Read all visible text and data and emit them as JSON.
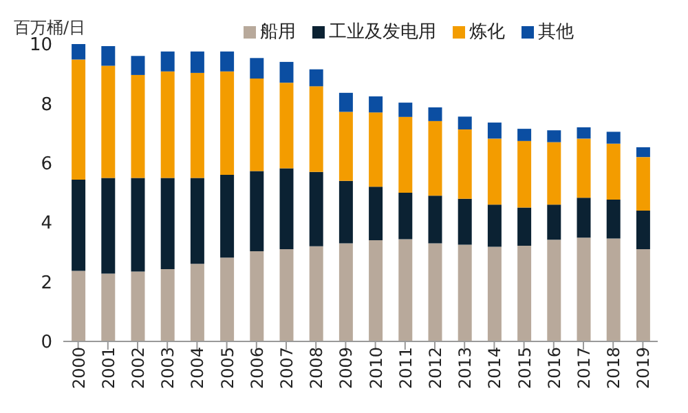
{
  "chart_data": {
    "type": "bar",
    "stacked": true,
    "ylabel": "百万桶/日",
    "categories": [
      "2000",
      "2001",
      "2002",
      "2003",
      "2004",
      "2005",
      "2006",
      "2007",
      "2008",
      "2009",
      "2010",
      "2011",
      "2012",
      "2013",
      "2014",
      "2015",
      "2016",
      "2017",
      "2018",
      "2019"
    ],
    "series": [
      {
        "name": "船用",
        "color": "#b8a99b",
        "values": [
          2.37,
          2.28,
          2.35,
          2.43,
          2.61,
          2.82,
          3.03,
          3.1,
          3.2,
          3.3,
          3.4,
          3.44,
          3.3,
          3.25,
          3.18,
          3.22,
          3.42,
          3.49,
          3.46,
          3.1
        ]
      },
      {
        "name": "工业及发电用",
        "color": "#0b2233",
        "values": [
          3.07,
          3.22,
          3.15,
          3.07,
          2.89,
          2.78,
          2.7,
          2.72,
          2.5,
          2.1,
          1.8,
          1.56,
          1.6,
          1.55,
          1.42,
          1.28,
          1.18,
          1.34,
          1.31,
          1.3
        ]
      },
      {
        "name": "炼化",
        "color": "#f39c00",
        "values": [
          4.04,
          3.77,
          3.46,
          3.58,
          3.53,
          3.48,
          3.11,
          2.88,
          2.88,
          2.32,
          2.5,
          2.55,
          2.51,
          2.33,
          2.22,
          2.24,
          2.1,
          1.99,
          1.88,
          1.8
        ]
      },
      {
        "name": "其他",
        "color": "#0b4ea2",
        "values": [
          0.52,
          0.66,
          0.64,
          0.67,
          0.72,
          0.67,
          0.69,
          0.7,
          0.57,
          0.64,
          0.54,
          0.48,
          0.46,
          0.43,
          0.54,
          0.41,
          0.4,
          0.38,
          0.4,
          0.33
        ]
      }
    ],
    "ylim": [
      0,
      10
    ],
    "yticks": [
      0,
      2,
      4,
      6,
      8,
      10
    ],
    "grid": false,
    "legend": "top"
  }
}
